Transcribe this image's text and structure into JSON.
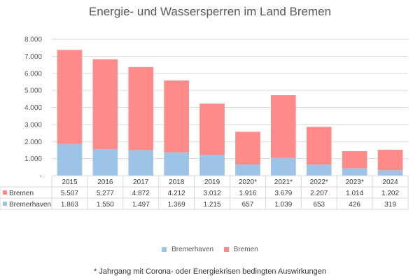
{
  "chart_data": {
    "type": "bar",
    "stacked": true,
    "title": "Energie- und Wassersperren im Land Bremen",
    "categories": [
      "2015",
      "2016",
      "2017",
      "2018",
      "2019",
      "2020*",
      "2021*",
      "2022*",
      "2023*",
      "2024"
    ],
    "series": [
      {
        "name": "Bremerhaven",
        "color": "#9DC3E6",
        "values": [
          1863,
          1550,
          1497,
          1369,
          1215,
          657,
          1039,
          653,
          426,
          319
        ],
        "labels": [
          "1.863",
          "1.550",
          "1.497",
          "1.369",
          "1.215",
          "657",
          "1.039",
          "653",
          "426",
          "319"
        ]
      },
      {
        "name": "Bremen",
        "color": "#FF8A8A",
        "values": [
          5507,
          5277,
          4872,
          4212,
          3012,
          1916,
          3679,
          2207,
          1014,
          1202
        ],
        "labels": [
          "5.507",
          "5.277",
          "4.872",
          "4.212",
          "3.012",
          "1.916",
          "3.679",
          "2.207",
          "1.014",
          "1.202"
        ]
      }
    ],
    "ylim": [
      0,
      8000
    ],
    "yticks": [
      0,
      1000,
      2000,
      3000,
      4000,
      5000,
      6000,
      7000,
      8000
    ],
    "ytick_labels": [
      "-",
      "1.000",
      "2.000",
      "3.000",
      "4.000",
      "5.000",
      "6.000",
      "7.000",
      "8.000"
    ],
    "grid": true,
    "legend": "bottom",
    "data_table": true
  },
  "footnote": "* Jahrgang mit Corona- oder Energiekrisen bedingten Auswirkungen"
}
